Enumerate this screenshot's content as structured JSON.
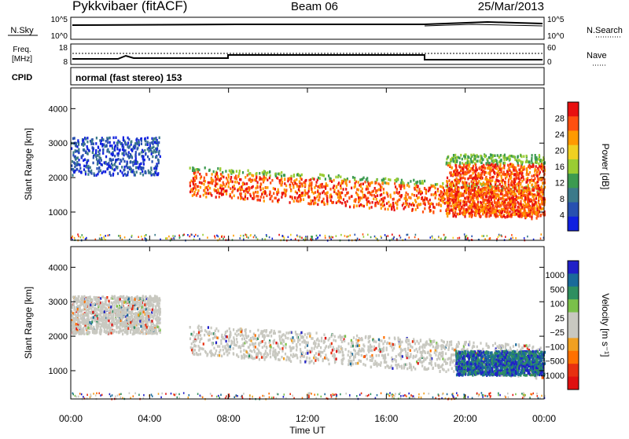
{
  "header": {
    "radar": "Pykkvibaer (fitACF)",
    "beam": "Beam 06",
    "date": "25/Mar/2013",
    "cpid_text": "normal (fast stereo) 153"
  },
  "strip_labels": {
    "nsky": "N.Sky",
    "freq": "Freq.",
    "freq_unit": "[MHz]",
    "cpid": "CPID",
    "nsearch": "N.Search",
    "nave": "Nave",
    "nsky_ticks": [
      "10^5",
      "10^0"
    ],
    "nsearch_ticks": [
      "10^5",
      "10^0"
    ],
    "freq_ticks": [
      "18",
      "8"
    ],
    "nave_ticks": [
      "60",
      "0"
    ]
  },
  "chart_data": [
    {
      "type": "heatmap",
      "title": "",
      "xlabel": "Time UT",
      "ylabel": "Slant Range [km]",
      "x_ticks": [
        "00:00",
        "04:00",
        "08:00",
        "12:00",
        "16:00",
        "20:00",
        "00:00"
      ],
      "x_hours": [
        0,
        4,
        8,
        12,
        16,
        20,
        24
      ],
      "y_ticks": [
        1000,
        2000,
        3000,
        4000
      ],
      "ylim": [
        180,
        4600
      ],
      "colorbar_label": "Power [dB]",
      "colorbar_ticks": [
        "28",
        "24",
        "20",
        "16",
        "12",
        "8",
        "4"
      ],
      "colorbar_colors": [
        "#e81010",
        "#ff5010",
        "#ff9a00",
        "#f0d020",
        "#9acd32",
        "#3c9a50",
        "#3c7a8a",
        "#2850b0",
        "#1020e0"
      ],
      "echo_regions": [
        {
          "t_start": 0,
          "t_end": 4.5,
          "range_low": 2100,
          "range_high": 3200,
          "level": "low"
        },
        {
          "t_start": 6.0,
          "t_end": 24,
          "range_low": 850,
          "range_high": 2400,
          "level": "high"
        },
        {
          "t_start": 19.0,
          "t_end": 24,
          "range_low": 900,
          "range_high": 2700,
          "level": "high"
        }
      ]
    },
    {
      "type": "heatmap",
      "title": "",
      "xlabel": "Time UT",
      "ylabel": "Slant Range [km]",
      "x_ticks": [
        "00:00",
        "04:00",
        "08:00",
        "12:00",
        "16:00",
        "20:00",
        "00:00"
      ],
      "x_hours": [
        0,
        4,
        8,
        12,
        16,
        20,
        24
      ],
      "y_ticks": [
        1000,
        2000,
        3000,
        4000
      ],
      "ylim": [
        180,
        4600
      ],
      "colorbar_label": "Velocity [m s⁻¹]",
      "colorbar_ticks": [
        "1000",
        "500",
        "100",
        "25",
        "−25",
        "−100",
        "−500",
        "−1000"
      ],
      "colorbar_colors": [
        "#2020c8",
        "#1a6a9a",
        "#2f8f60",
        "#7ac04a",
        "#c8c8c0",
        "#c8c8c0",
        "#f0a020",
        "#ff7000",
        "#e83010",
        "#e01010"
      ],
      "echo_regions": [
        {
          "t_start": 0,
          "t_end": 4.5,
          "range_low": 2100,
          "range_high": 3200,
          "dominant": "near-zero"
        },
        {
          "t_start": 6.0,
          "t_end": 24,
          "range_low": 1200,
          "range_high": 2400,
          "dominant": "near-zero"
        },
        {
          "t_start": 19.5,
          "t_end": 24,
          "range_low": 900,
          "range_high": 1600,
          "dominant": "positive"
        }
      ]
    }
  ]
}
